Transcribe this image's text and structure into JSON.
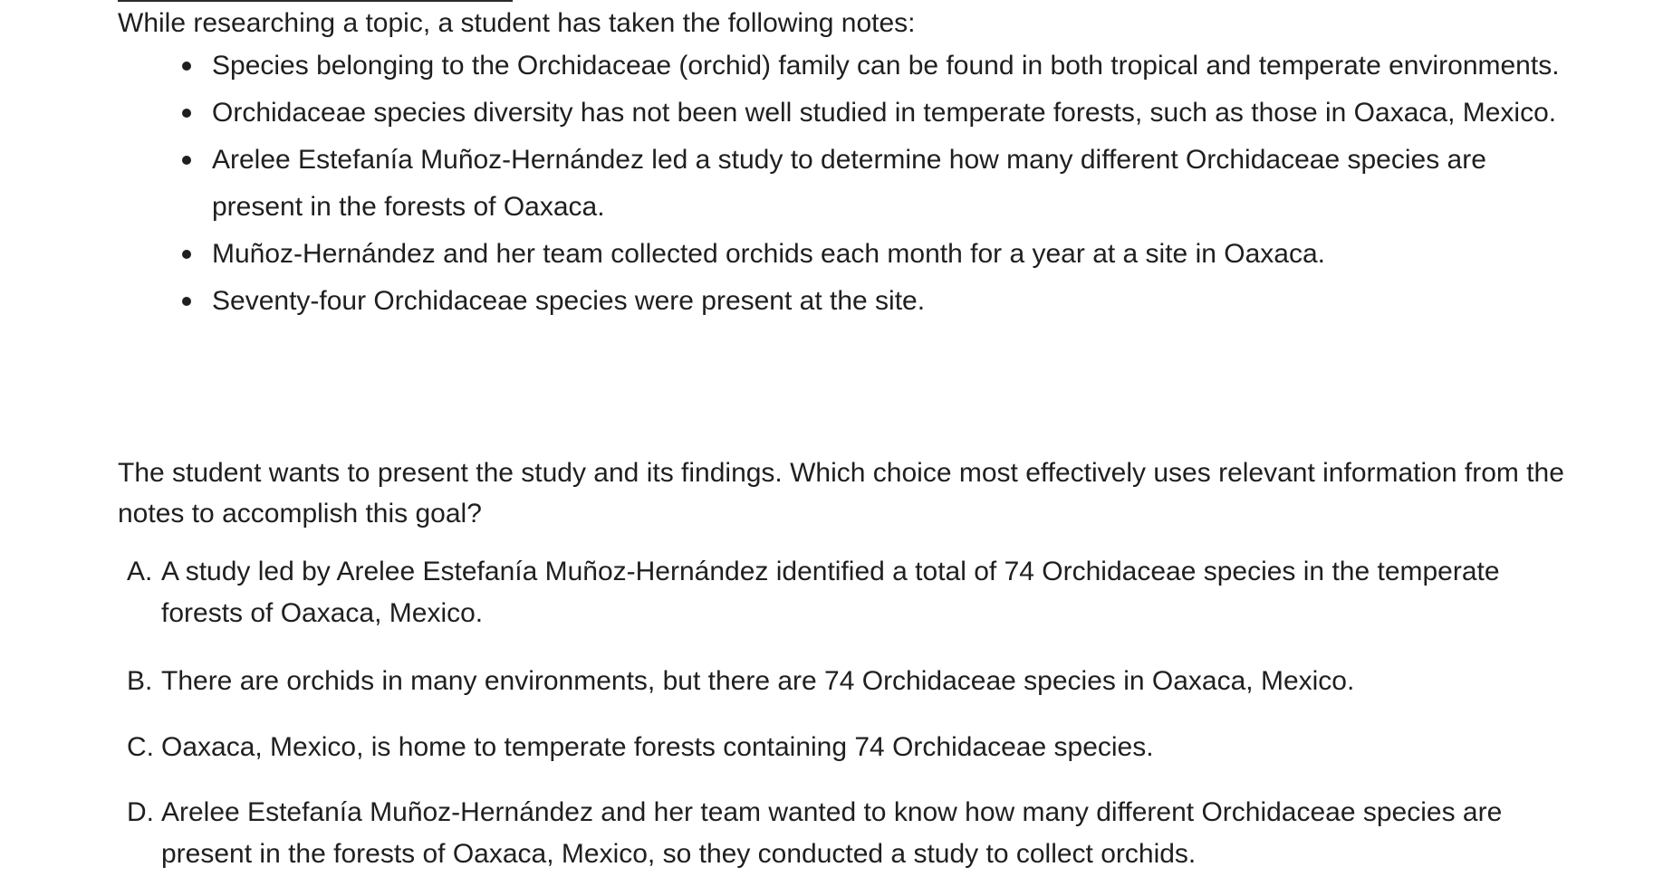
{
  "intro": "While researching a topic, a student has taken the following notes:",
  "notes": [
    "Species belonging to the Orchidaceae (orchid) family can be found in both tropical and temperate environments.",
    "Orchidaceae species diversity has not been well studied in temperate forests, such as those in Oaxaca, Mexico.",
    "Arelee Estefanía Muñoz-Hernández led a study to determine how many different Orchidaceae species are present in the forests of Oaxaca.",
    "Muñoz-Hernández and her team collected orchids each month for a year at a site in Oaxaca.",
    "Seventy-four Orchidaceae species were present at the site."
  ],
  "question": "The student wants to present the study and its findings. Which choice most effectively uses relevant information from the notes to accomplish this goal?",
  "choices": [
    {
      "letter": "A.",
      "text": "A study led by Arelee Estefanía Muñoz-Hernández identified a total of 74 Orchidaceae species in the temperate forests of Oaxaca, Mexico."
    },
    {
      "letter": "B.",
      "text": "There are orchids in many environments, but there are 74 Orchidaceae species in Oaxaca, Mexico."
    },
    {
      "letter": "C.",
      "text": "Oaxaca, Mexico, is home to temperate forests containing 74 Orchidaceae species."
    },
    {
      "letter": "D.",
      "text": "Arelee Estefanía Muñoz-Hernández and her team wanted to know how many different Orchidaceae species are present in the forests of Oaxaca, Mexico, so they conducted a study to collect orchids."
    }
  ]
}
